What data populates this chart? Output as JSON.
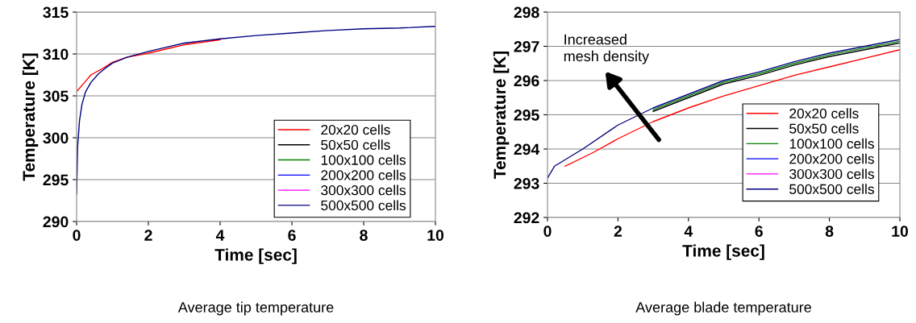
{
  "chart_data": [
    {
      "type": "line",
      "xlabel": "Time [sec]",
      "ylabel": "Temperature [K]",
      "xlim": [
        0,
        10
      ],
      "ylim": [
        290,
        315
      ],
      "xticks": [
        0,
        2,
        4,
        6,
        8,
        10
      ],
      "yticks": [
        290,
        295,
        300,
        305,
        310,
        315
      ],
      "grid": "y",
      "legend": "bottom right",
      "annotations": [
        "Average tip temperature"
      ],
      "series": [
        {
          "name": "20x20 cells",
          "color": "#ff0000",
          "x": [
            0.02,
            0.2,
            0.4,
            0.7,
            1.0,
            1.4,
            2,
            2.5,
            3,
            4
          ],
          "values": [
            305.6,
            306.5,
            307.5,
            308.2,
            309,
            309.6,
            310.1,
            310.6,
            311.1,
            311.7
          ]
        },
        {
          "name": "50x50 cells",
          "color": "#000000"
        },
        {
          "name": "100x100 cells",
          "color": "#008000"
        },
        {
          "name": "200x200 cells",
          "color": "#0000ff"
        },
        {
          "name": "300x300 cells",
          "color": "#ff00ff"
        },
        {
          "name": "500x500 cells",
          "color": "#000080",
          "x": [
            0,
            0.03,
            0.08,
            0.15,
            0.25,
            0.4,
            0.6,
            0.8,
            1.0,
            1.4,
            2,
            2.5,
            3,
            4,
            5,
            6,
            7,
            8,
            9,
            10
          ],
          "values": [
            293.3,
            299,
            302,
            304,
            305.5,
            306.6,
            307.6,
            308.3,
            308.9,
            309.6,
            310.3,
            310.8,
            311.3,
            311.8,
            312.2,
            312.5,
            312.8,
            313,
            313.1,
            313.3
          ]
        }
      ]
    },
    {
      "type": "line",
      "xlabel": "Time [sec]",
      "ylabel": "Temperature [K]",
      "xlim": [
        0,
        10
      ],
      "ylim": [
        292,
        298
      ],
      "xticks": [
        0,
        2,
        4,
        6,
        8,
        10
      ],
      "yticks": [
        292,
        293,
        294,
        295,
        296,
        297,
        298
      ],
      "grid": "y",
      "legend": "bottom right",
      "annotations": [
        "Increased\nmesh density",
        "Average blade temperature"
      ],
      "series": [
        {
          "name": "20x20 cells",
          "color": "#ff0000",
          "x": [
            0.5,
            1.3,
            2,
            3,
            4,
            5,
            6,
            7,
            8,
            9,
            10
          ],
          "values": [
            293.5,
            293.9,
            294.3,
            294.8,
            295.2,
            295.55,
            295.85,
            296.15,
            296.4,
            296.65,
            296.9
          ]
        },
        {
          "name": "50x50 cells",
          "color": "#000000",
          "x": [
            3,
            4,
            5,
            6,
            7,
            8,
            9,
            10
          ],
          "values": [
            295.1,
            295.5,
            295.9,
            296.15,
            296.45,
            296.7,
            296.9,
            297.1
          ]
        },
        {
          "name": "100x100 cells",
          "color": "#008000",
          "x": [
            3,
            4,
            5,
            6,
            7,
            8,
            9,
            10
          ],
          "values": [
            295.15,
            295.55,
            295.95,
            296.2,
            296.5,
            296.75,
            296.95,
            297.15
          ]
        },
        {
          "name": "200x200 cells",
          "color": "#0000ff"
        },
        {
          "name": "300x300 cells",
          "color": "#ff00ff"
        },
        {
          "name": "500x500 cells",
          "color": "#000080",
          "x": [
            0,
            0.2,
            1,
            2,
            3,
            4,
            5,
            6,
            7,
            8,
            9,
            10
          ],
          "values": [
            293.15,
            293.5,
            294,
            294.7,
            295.2,
            295.6,
            296,
            296.25,
            296.55,
            296.8,
            297,
            297.2
          ]
        }
      ]
    }
  ]
}
